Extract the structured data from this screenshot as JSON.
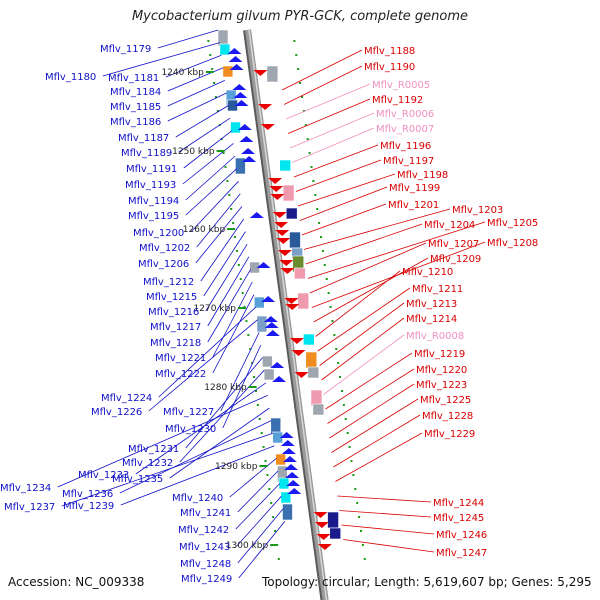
{
  "title": "Mycobacterium gilvum PYR-GCK, complete genome",
  "footer": {
    "accession": "Accession: NC_009338",
    "topology": "Topology: circular; Length: 5,619,607 bp; Genes: 5,295"
  },
  "colors": {
    "left_label": "#1010c8",
    "right_label": "#d80000",
    "rna_label": "#f090c0",
    "backbone": "#9a9a9a",
    "tick": "#1a9a1a"
  },
  "ticks": [
    "1240 kbp",
    "1250 kbp",
    "1260 kbp",
    "1270 kbp",
    "1280 kbp",
    "1290 kbp",
    "1300 kbp"
  ],
  "left_labels": [
    "Mflv_1179",
    "Mflv_1180",
    "Mflv_1181",
    "Mflv_1184",
    "Mflv_1185",
    "Mflv_1186",
    "Mflv_1187",
    "Mflv_1189",
    "Mflv_1191",
    "Mflv_1193",
    "Mflv_1194",
    "Mflv_1195",
    "Mflv_1200",
    "Mflv_1202",
    "Mflv_1206",
    "Mflv_1212",
    "Mflv_1215",
    "Mflv_1216",
    "Mflv_1217",
    "Mflv_1218",
    "Mflv_1221",
    "Mflv_1222",
    "Mflv_1224",
    "Mflv_1226",
    "Mflv_1227",
    "Mflv_1230",
    "Mflv_1231",
    "Mflv_1232",
    "Mflv_1233",
    "Mflv_1234",
    "Mflv_1235",
    "Mflv_1236",
    "Mflv_1237",
    "Mflv_1239",
    "Mflv_1240",
    "Mflv_1241",
    "Mflv_1242",
    "Mflv_1243",
    "Mflv_1248",
    "Mflv_1249"
  ],
  "right_labels": [
    "Mflv_1188",
    "Mflv_1190",
    "Mflv_R0005",
    "Mflv_1192",
    "Mflv_R0006",
    "Mflv_R0007",
    "Mflv_1196",
    "Mflv_1197",
    "Mflv_1198",
    "Mflv_1199",
    "Mflv_1201",
    "Mflv_1203",
    "Mflv_1204",
    "Mflv_1205",
    "Mflv_1207",
    "Mflv_1208",
    "Mflv_1209",
    "Mflv_1210",
    "Mflv_1211",
    "Mflv_1213",
    "Mflv_1214",
    "Mflv_R0008",
    "Mflv_1219",
    "Mflv_1220",
    "Mflv_1223",
    "Mflv_1225",
    "Mflv_1228",
    "Mflv_1229",
    "Mflv_1244",
    "Mflv_1245",
    "Mflv_1246",
    "Mflv_1247"
  ],
  "rna_genes": [
    "Mflv_R0005",
    "Mflv_R0006",
    "Mflv_R0007",
    "Mflv_R0008"
  ]
}
